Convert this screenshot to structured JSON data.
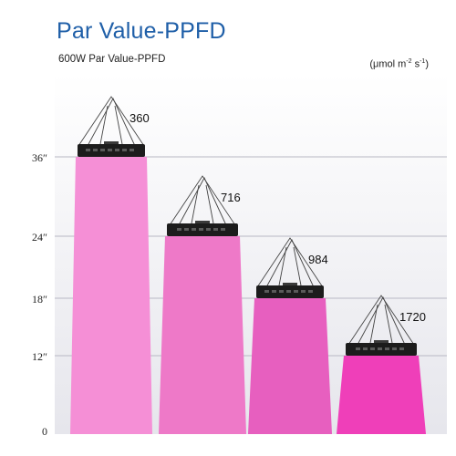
{
  "header": {
    "title": "Par Value-PPFD",
    "subtitle": "600W Par Value-PPFD",
    "unit_prefix": "(μmol m",
    "unit_exp1": "-2",
    "unit_mid": " s",
    "unit_exp2": "-1",
    "unit_suffix": ")"
  },
  "colors": {
    "background_panel": "#ececf0",
    "light_fixture": "#1c1c1c",
    "beam_1": "#f58fd6",
    "beam_2": "#ee79c8",
    "beam_3": "#e75fbf",
    "beam_4": "#ef3fb9"
  },
  "chart_data": {
    "type": "bar",
    "title": "Par Value-PPFD",
    "subtitle": "600W Par Value-PPFD",
    "ylabel": "(μmol m-2 s-1)",
    "yticks": [
      "0",
      "12″",
      "18″",
      "24″",
      "36″"
    ],
    "ytick_values": [
      0,
      12,
      18,
      24,
      36
    ],
    "series": [
      {
        "height_in": 36,
        "ppfd": 360,
        "label": "360"
      },
      {
        "height_in": 24,
        "ppfd": 716,
        "label": "716"
      },
      {
        "height_in": 18,
        "ppfd": 984,
        "label": "984"
      },
      {
        "height_in": 12,
        "ppfd": 1720,
        "label": "1720"
      }
    ],
    "grid": true
  }
}
